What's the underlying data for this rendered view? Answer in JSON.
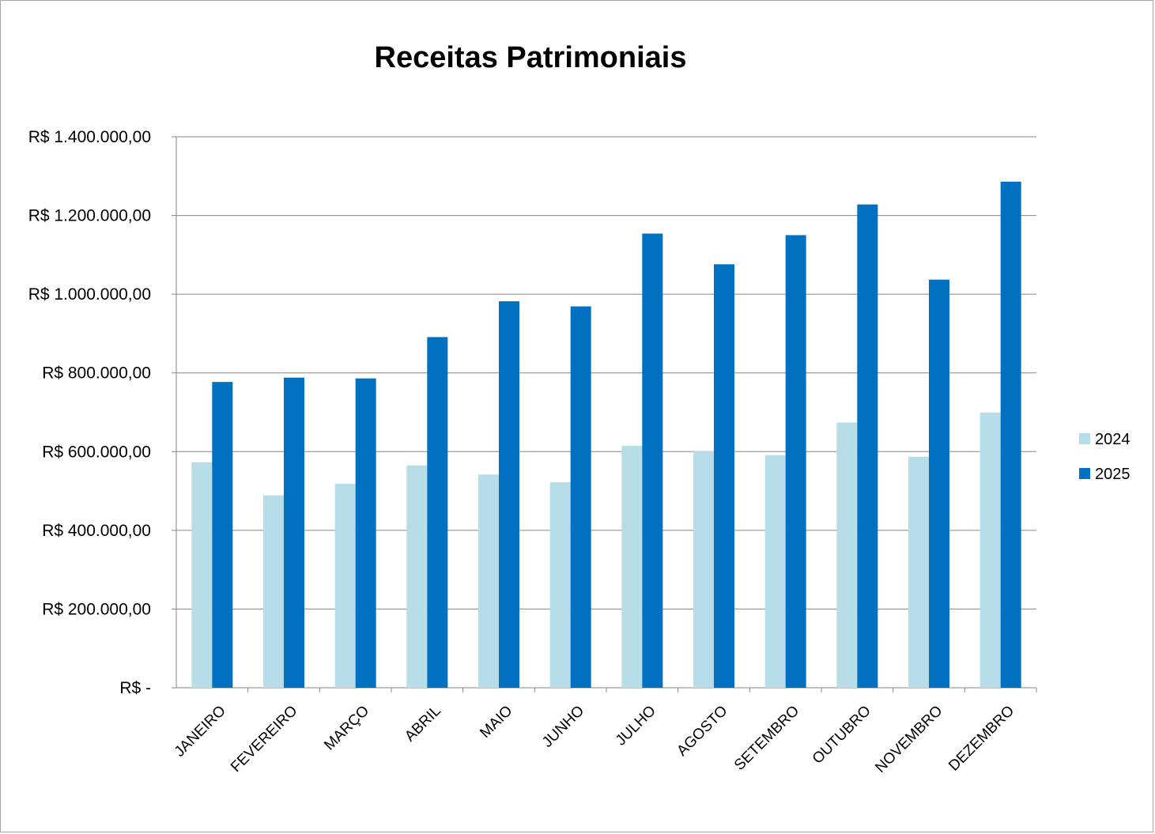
{
  "chart_data": {
    "type": "bar",
    "title": "Receitas Patrimoniais",
    "xlabel": "",
    "ylabel": "",
    "categories": [
      "JANEIRO",
      "FEVEREIRO",
      "MARÇO",
      "ABRIL",
      "MAIO",
      "JUNHO",
      "JULHO",
      "AGOSTO",
      "SETEMBRO",
      "OUTUBRO",
      "NOVEMBRO",
      "DEZEMBRO"
    ],
    "series": [
      {
        "name": "2024",
        "color": "#b7dde8",
        "values": [
          573000,
          489000,
          518000,
          565000,
          542000,
          522000,
          615000,
          601000,
          591000,
          674000,
          587000,
          699000
        ]
      },
      {
        "name": "2025",
        "color": "#0070c0",
        "values": [
          777000,
          788000,
          786000,
          891000,
          982000,
          969000,
          1154000,
          1076000,
          1150000,
          1228000,
          1037000,
          1286000
        ]
      }
    ],
    "ylim": [
      0,
      1400000
    ],
    "yticks": [
      0,
      200000,
      400000,
      600000,
      800000,
      1000000,
      1200000,
      1400000
    ],
    "ytick_labels": [
      "R$ -",
      "R$ 200.000,00",
      "R$ 400.000,00",
      "R$ 600.000,00",
      "R$ 800.000,00",
      "R$ 1.000.000,00",
      "R$ 1.200.000,00",
      "R$ 1.400.000,00"
    ],
    "grid": true,
    "legend_position": "right",
    "gridline_color": "#868686"
  }
}
